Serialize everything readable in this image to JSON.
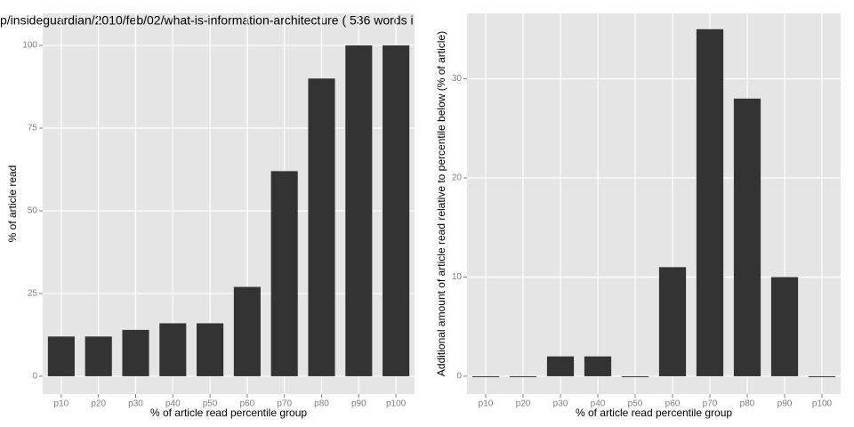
{
  "chart_data": [
    {
      "type": "bar",
      "title": "p/insideguardian/2010/feb/02/what-is-information-architecture ( 536 words i",
      "x_label": "% of article read percentile group",
      "y_label": "% of article read",
      "categories": [
        "p10",
        "p20",
        "p30",
        "p40",
        "p50",
        "p60",
        "p70",
        "p80",
        "p90",
        "p100"
      ],
      "values": [
        12,
        12,
        14,
        16,
        16,
        27,
        62,
        90,
        100,
        100
      ],
      "color": "#333333",
      "ylim": [
        -5.4,
        109.7
      ],
      "yticks": [
        0,
        25,
        50,
        75,
        100
      ],
      "grid": true
    },
    {
      "type": "bar",
      "x_label": "% of article read percentile group",
      "y_label": "Additional amount of article read relative to percentile below (% of article)",
      "categories": [
        "p10",
        "p20",
        "p30",
        "p40",
        "p50",
        "p60",
        "p70",
        "p80",
        "p90",
        "p100"
      ],
      "values": [
        0,
        0,
        2,
        2,
        0,
        11,
        35,
        28,
        10,
        0
      ],
      "color": "#333333",
      "ylim": [
        -1.8,
        36.6
      ],
      "yticks": [
        0,
        10,
        20,
        30
      ],
      "grid": true
    }
  ]
}
